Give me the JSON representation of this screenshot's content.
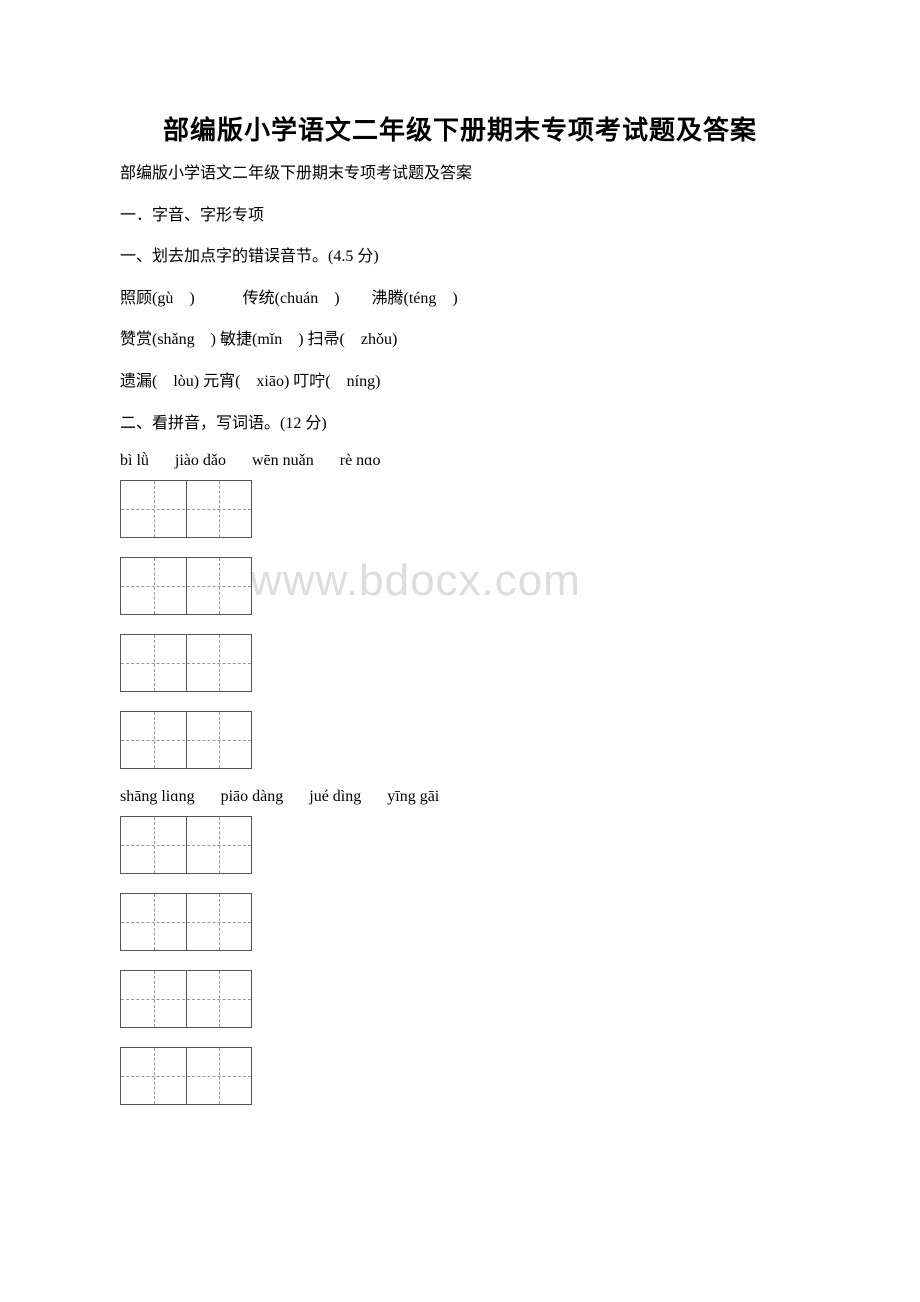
{
  "title": "部编版小学语文二年级下册期末专项考试题及答案",
  "subtitle": "部编版小学语文二年级下册期末专项考试题及答案",
  "section_main": "一．字音、字形专项",
  "q1_heading": "一、划去加点字的错误音节。(4.5 分)",
  "q1_row1": "照顾(gù　)　　　传统(chuán　)　　沸腾(téng　)",
  "q1_row2": "赞赏(shǎng　) 敏捷(mǐn　) 扫帚(　zhǒu)",
  "q1_row3": "遗漏(　lòu) 元宵(　xiāo) 叮咛(　níng)",
  "q2_heading": "二、看拼音，写词语。(12 分)",
  "pinyin_set1": {
    "g1": "bì lǜ",
    "g2": "jiào dǎo",
    "g3": "wēn nuǎn",
    "g4": "rè nɑo"
  },
  "pinyin_set2": {
    "g1": "shāng liɑng",
    "g2": "piāo dàng",
    "g3": "jué dìng",
    "g4": "yīng gāi"
  },
  "watermark": "www.bdocx.com"
}
